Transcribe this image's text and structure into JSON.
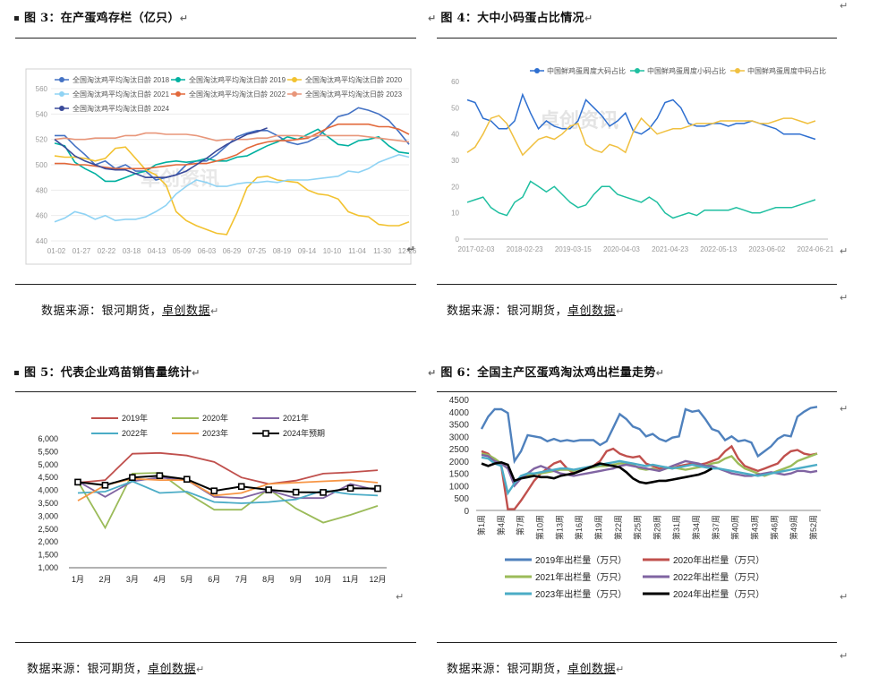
{
  "captions": {
    "fig3": "图 3：在产蛋鸡存栏（亿只）",
    "fig4": "图 4：大中小码蛋占比情况",
    "fig5": "图 5：代表企业鸡苗销售量统计",
    "fig6": "图 6：全国主产区蛋鸡淘汰鸡出栏量走势"
  },
  "sources": {
    "prefix": "数据来源：银河期货，",
    "suffix": "卓创数据"
  },
  "return_mark": "↵",
  "watermark": "卓创资讯",
  "colors": {
    "c2018": "#4472c4",
    "c2019": "#00b0a0",
    "c2020": "#f2c230",
    "c2021": "#8fd3f4",
    "c2022": "#e2683a",
    "c2023": "#e8967a",
    "c2024": "#3a4a9a",
    "big": "#2e6fd0",
    "small": "#1fbfa0",
    "mid": "#f0c040",
    "f5_2019": "#c0504d",
    "f5_2020": "#9bbb59",
    "f5_2021": "#8064a2",
    "f5_2022": "#4bacc6",
    "f5_2023": "#f79646",
    "f5_2024": "#000000",
    "f6_2019": "#4f81bd",
    "f6_2020": "#c0504d",
    "f6_2021": "#9bbb59",
    "f6_2022": "#8064a2",
    "f6_2023": "#4bacc6",
    "f6_2024": "#000000"
  },
  "chart_data": [
    {
      "id": "fig3",
      "type": "line",
      "title": "在产蛋鸡存栏（亿只）",
      "ylim": [
        440,
        560
      ],
      "yticks": [
        "560",
        "540",
        "520",
        "500",
        "480",
        "460",
        "440"
      ],
      "xticks": [
        "01-02",
        "01-27",
        "02-22",
        "03-18",
        "04-13",
        "05-09",
        "06-03",
        "06-29",
        "07-25",
        "08-19",
        "09-14",
        "10-10",
        "11-04",
        "11-30",
        "12-26"
      ],
      "series": [
        {
          "name": "全国淘汰鸡平均淘汰日龄 2018",
          "color": "c2018",
          "values": [
            523,
            523,
            515,
            508,
            500,
            503,
            497,
            500,
            495,
            495,
            488,
            490,
            492,
            500,
            503,
            503,
            508,
            515,
            522,
            525,
            527,
            527,
            523,
            518,
            516,
            518,
            522,
            530,
            538,
            540,
            545,
            543,
            540,
            535,
            526,
            516
          ]
        },
        {
          "name": "全国淘汰鸡平均淘汰日龄 2019",
          "color": "c2019",
          "values": [
            517,
            515,
            502,
            497,
            493,
            487,
            487,
            490,
            493,
            495,
            500,
            502,
            503,
            502,
            503,
            505,
            503,
            503,
            506,
            507,
            511,
            515,
            518,
            522,
            520,
            524,
            528,
            522,
            516,
            515,
            519,
            520,
            522,
            515,
            510,
            509
          ]
        },
        {
          "name": "全国淘汰鸡平均淘汰日龄 2020",
          "color": "c2020",
          "values": [
            507,
            506,
            506,
            505,
            503,
            505,
            513,
            514,
            505,
            496,
            492,
            484,
            463,
            456,
            452,
            449,
            446,
            445,
            462,
            482,
            490,
            491,
            488,
            487,
            486,
            480,
            477,
            476,
            473,
            463,
            460,
            459,
            453,
            452,
            452,
            455
          ]
        },
        {
          "name": "全国淘汰鸡平均淘汰日龄 2021",
          "color": "c2021",
          "values": [
            455,
            458,
            463,
            461,
            457,
            460,
            456,
            457,
            457,
            459,
            463,
            468,
            477,
            483,
            488,
            486,
            483,
            483,
            485,
            486,
            486,
            487,
            486,
            488,
            488,
            488,
            489,
            490,
            491,
            495,
            494,
            497,
            502,
            505,
            508,
            506
          ]
        },
        {
          "name": "全国淘汰鸡平均淘汰日龄 2022",
          "color": "c2022",
          "values": [
            501,
            501,
            500,
            500,
            499,
            498,
            497,
            497,
            497,
            497,
            498,
            499,
            500,
            500,
            501,
            501,
            503,
            505,
            508,
            513,
            516,
            518,
            519,
            519,
            520,
            521,
            525,
            529,
            532,
            532,
            532,
            532,
            530,
            530,
            528,
            524
          ]
        },
        {
          "name": "全国淘汰鸡平均淘汰日龄 2023",
          "color": "c2023",
          "values": [
            520,
            521,
            520,
            520,
            521,
            521,
            521,
            523,
            523,
            525,
            525,
            524,
            524,
            524,
            523,
            521,
            519,
            520,
            520,
            520,
            521,
            521,
            523,
            523,
            523,
            522,
            523,
            523,
            523,
            523,
            523,
            522,
            521,
            520,
            519,
            518
          ]
        },
        {
          "name": "全国淘汰鸡平均淘汰日龄 2024",
          "color": "c2024",
          "values": [
            520,
            514,
            507,
            503,
            500,
            497,
            496,
            496,
            493,
            490,
            490,
            490,
            492,
            495,
            500,
            505,
            511,
            516,
            520,
            524,
            526,
            529
          ]
        }
      ]
    },
    {
      "id": "fig4",
      "type": "line",
      "title": "大中小码蛋占比情况",
      "ylim": [
        0,
        60
      ],
      "yticks": [
        "60",
        "50",
        "40",
        "30",
        "20",
        "10",
        "0"
      ],
      "xticks": [
        "2017-02-03",
        "2018-02-23",
        "2019-03-15",
        "2020-04-03",
        "2021-04-23",
        "2022-05-13",
        "2023-06-02",
        "2024-06-21"
      ],
      "series": [
        {
          "name": "中国鲜鸡蛋周度大码占比",
          "color": "big",
          "values": [
            53,
            52,
            46,
            45,
            42,
            42,
            45,
            55,
            48,
            42,
            45,
            43,
            42,
            42,
            45,
            53,
            50,
            47,
            43,
            45,
            48,
            41,
            40,
            42,
            46,
            52,
            53,
            50,
            44,
            43,
            43,
            44,
            44,
            43,
            44,
            44,
            45,
            44,
            43,
            42,
            40,
            40,
            40,
            39,
            38
          ]
        },
        {
          "name": "中国鲜鸡蛋周度小码占比",
          "color": "small",
          "values": [
            14,
            15,
            16,
            12,
            10,
            9,
            14,
            16,
            22,
            20,
            18,
            20,
            17,
            14,
            12,
            13,
            17,
            20,
            20,
            17,
            16,
            15,
            14,
            16,
            14,
            10,
            8,
            9,
            10,
            9,
            11,
            11,
            11,
            11,
            12,
            11,
            10,
            10,
            11,
            12,
            12,
            12,
            13,
            14,
            15
          ]
        },
        {
          "name": "中国鲜鸡蛋周度中码占比",
          "color": "mid",
          "values": [
            33,
            35,
            40,
            46,
            47,
            44,
            38,
            32,
            35,
            38,
            39,
            38,
            40,
            43,
            44,
            36,
            34,
            33,
            36,
            35,
            33,
            41,
            46,
            43,
            40,
            41,
            42,
            42,
            43,
            44,
            44,
            44,
            45,
            45,
            45,
            45,
            45,
            44,
            44,
            45,
            46,
            46,
            45,
            44,
            45
          ]
        }
      ]
    },
    {
      "id": "fig5",
      "type": "line",
      "title": "代表企业鸡苗销售量统计",
      "ylim": [
        1000,
        6000
      ],
      "yticks": [
        "6,000",
        "5,500",
        "5,000",
        "4,500",
        "4,000",
        "3,500",
        "3,000",
        "2,500",
        "2,000",
        "1,500",
        "1,000"
      ],
      "categories": [
        "1月",
        "2月",
        "3月",
        "4月",
        "5月",
        "6月",
        "7月",
        "8月",
        "9月",
        "10月",
        "11月",
        "12月"
      ],
      "series": [
        {
          "name": "2019年",
          "color": "f5_2019",
          "values": [
            4300,
            4400,
            5420,
            5450,
            5350,
            5100,
            4500,
            4250,
            4380,
            4650,
            4700,
            4780
          ]
        },
        {
          "name": "2020年",
          "color": "f5_2020",
          "values": [
            4350,
            2550,
            4650,
            4680,
            3900,
            3250,
            3250,
            4050,
            3300,
            2750,
            3050,
            3400
          ]
        },
        {
          "name": "2021年",
          "color": "f5_2021",
          "values": [
            4350,
            3750,
            4350,
            4500,
            4400,
            3750,
            3700,
            4000,
            3700,
            3700,
            4250,
            4000
          ]
        },
        {
          "name": "2022年",
          "color": "f5_2022",
          "values": [
            3900,
            3950,
            4350,
            3900,
            3950,
            3550,
            3500,
            3550,
            3650,
            4000,
            3850,
            3800
          ]
        },
        {
          "name": "2023年",
          "color": "f5_2023",
          "values": [
            3600,
            4200,
            4450,
            4400,
            4400,
            3800,
            3900,
            4250,
            4300,
            4350,
            4400,
            4300
          ]
        },
        {
          "name": "2024年预期",
          "color": "f5_2024",
          "values": [
            4320,
            4200,
            4500,
            4570,
            4430,
            3980,
            4150,
            4020,
            3930,
            3920,
            4080,
            4070
          ]
        }
      ]
    },
    {
      "id": "fig6",
      "type": "line",
      "title": "全国主产区蛋鸡淘汰鸡出栏量走势",
      "ylim": [
        0,
        4500
      ],
      "yticks": [
        "4500",
        "4000",
        "3500",
        "3000",
        "2500",
        "2000",
        "1500",
        "1000",
        "500",
        "0"
      ],
      "xticks": [
        "第1周",
        "第4周",
        "第7周",
        "第10周",
        "第13周",
        "第16周",
        "第19周",
        "第22周",
        "第25周",
        "第28周",
        "第31周",
        "第34周",
        "第37周",
        "第40周",
        "第43周",
        "第46周",
        "第49周",
        "第52周"
      ],
      "series": [
        {
          "name": "2019年出栏量（万只）",
          "color": "f6_2019",
          "values": [
            3300,
            3800,
            4100,
            4100,
            3950,
            2000,
            2400,
            3050,
            3000,
            2950,
            2800,
            2900,
            2800,
            2850,
            2800,
            2850,
            2850,
            2850,
            2650,
            2800,
            3350,
            3900,
            3700,
            3400,
            3300,
            3000,
            3100,
            2900,
            2800,
            2950,
            3000,
            4100,
            4000,
            4050,
            3700,
            3300,
            3200,
            2850,
            3000,
            2800,
            2850,
            2750,
            2200,
            2400,
            2600,
            2900,
            3050,
            3000,
            3800,
            4000,
            4150,
            4200
          ]
        },
        {
          "name": "2020年出栏量（万只）",
          "color": "f6_2020",
          "values": [
            2400,
            2300,
            2000,
            1800,
            50,
            50,
            400,
            800,
            1200,
            1500,
            1700,
            1900,
            2000,
            1700,
            1500,
            1600,
            1700,
            1800,
            2000,
            2400,
            2500,
            2300,
            2200,
            2150,
            2200,
            1900,
            1800,
            1700,
            1750,
            1700,
            1800,
            1850,
            1900,
            1850,
            1900,
            2000,
            2100,
            2400,
            2600,
            2100,
            1800,
            1700,
            1600,
            1700,
            1800,
            1900,
            2200,
            2400,
            2450,
            2300,
            2250,
            2300
          ]
        },
        {
          "name": "2021年出栏量（万只）",
          "color": "f6_2021",
          "values": [
            2300,
            2250,
            2100,
            1900,
            1700,
            1200,
            1300,
            1400,
            1500,
            1500,
            1550,
            1600,
            1650,
            1650,
            1600,
            1700,
            1700,
            1750,
            1800,
            1800,
            1850,
            1900,
            1900,
            1850,
            1700,
            1650,
            1700,
            1600,
            1700,
            1750,
            1700,
            1650,
            1700,
            1750,
            1800,
            1900,
            1950,
            2100,
            2200,
            1900,
            1700,
            1600,
            1500,
            1400,
            1500,
            1600,
            1700,
            1800,
            2000,
            2100,
            2200,
            2300
          ]
        },
        {
          "name": "2022年出栏量（万只）",
          "color": "f6_2022",
          "values": [
            2250,
            2200,
            2000,
            1900,
            1700,
            1000,
            1300,
            1500,
            1700,
            1800,
            1700,
            1600,
            1500,
            1450,
            1400,
            1450,
            1500,
            1550,
            1600,
            1650,
            1700,
            1800,
            1850,
            1800,
            1750,
            1700,
            1650,
            1600,
            1700,
            1800,
            1900,
            2000,
            1950,
            1900,
            1800,
            1800,
            1700,
            1600,
            1500,
            1450,
            1400,
            1400,
            1450,
            1500,
            1550,
            1500,
            1450,
            1500,
            1600,
            1600,
            1550,
            1600
          ]
        },
        {
          "name": "2023年出栏量（万只）",
          "color": "f6_2023",
          "values": [
            2150,
            2100,
            1900,
            1800,
            700,
            1100,
            1400,
            1500,
            1500,
            1550,
            1600,
            1650,
            1700,
            1700,
            1650,
            1700,
            1750,
            1800,
            1850,
            1900,
            1950,
            2000,
            1950,
            1900,
            1850,
            1800,
            1850,
            1800,
            1750,
            1700,
            1750,
            1800,
            1850,
            1800,
            1750,
            1700,
            1700,
            1650,
            1600,
            1550,
            1500,
            1450,
            1400,
            1450,
            1500,
            1550,
            1600,
            1650,
            1700,
            1750,
            1800,
            1850
          ]
        },
        {
          "name": "2024年出栏量（万只）",
          "color": "f6_2024",
          "values": [
            1900,
            1800,
            1900,
            1950,
            1850,
            1200,
            1300,
            1350,
            1400,
            1350,
            1350,
            1300,
            1400,
            1450,
            1500,
            1600,
            1700,
            1800,
            1900,
            1850,
            1800,
            1750,
            1550,
            1300,
            1150,
            1100,
            1150,
            1200,
            1200,
            1250,
            1300,
            1350,
            1400,
            1450,
            1550,
            1700
          ]
        }
      ]
    }
  ]
}
